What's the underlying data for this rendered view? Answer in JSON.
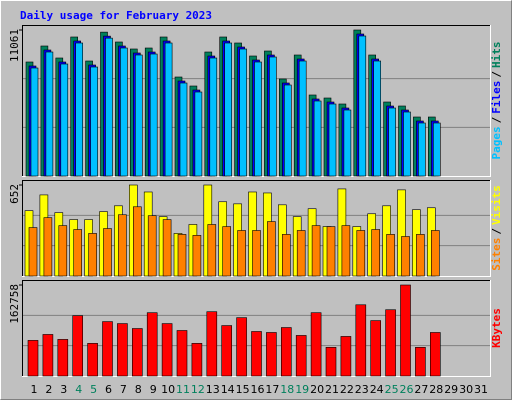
{
  "chart_data": [
    {
      "type": "bar",
      "title": "Daily usage for February 2023",
      "ylim": [
        0,
        11061
      ],
      "yticks": [
        11061
      ],
      "legend_separator": "/",
      "series": [
        {
          "name": "Hits",
          "color": "#00805c",
          "values": [
            8637,
            9849,
            8940,
            10531,
            8712,
            10900,
            10152,
            9622,
            9697,
            10531,
            7500,
            6818,
            9394,
            10531,
            10076,
            9091,
            9470,
            7349,
            9167,
            6137,
            5909,
            5455,
            11061,
            9167,
            5606,
            5303,
            4470,
            4470,
            null,
            null,
            null
          ]
        },
        {
          "name": "Files",
          "color": "#0000ff",
          "values": [
            8334,
            9546,
            8637,
            10228,
            8409,
            10597,
            9849,
            9319,
            9394,
            10228,
            7197,
            6515,
            9091,
            10228,
            9773,
            8788,
            9167,
            7046,
            8864,
            5834,
            5606,
            5152,
            10758,
            8864,
            5303,
            5000,
            4167,
            4167,
            null,
            null,
            null
          ]
        },
        {
          "name": "Pages",
          "color": "#00c0ff",
          "values": [
            8182,
            9394,
            8485,
            10076,
            8257,
            10445,
            9697,
            9167,
            9242,
            10076,
            7045,
            6363,
            8939,
            10076,
            9621,
            8636,
            9015,
            6894,
            8712,
            5682,
            5454,
            5000,
            10606,
            8712,
            5151,
            4848,
            4015,
            4015,
            null,
            null,
            null
          ]
        }
      ]
    },
    {
      "type": "bar",
      "ylim": [
        0,
        652
      ],
      "yticks": [
        652
      ],
      "legend_separator": "/",
      "series": [
        {
          "name": "Visits",
          "color": "#ffff00",
          "values": [
            468,
            581,
            454,
            404,
            404,
            461,
            503,
            652,
            602,
            425,
            305,
            369,
            652,
            532,
            517,
            602,
            595,
            510,
            425,
            482,
            354,
            624,
            354,
            446,
            503,
            617,
            475,
            489,
            null,
            null,
            null
          ]
        },
        {
          "name": "Sites",
          "color": "#ff8000",
          "values": [
            347,
            418,
            361,
            333,
            305,
            340,
            439,
            496,
            432,
            404,
            298,
            291,
            369,
            354,
            326,
            326,
            390,
            298,
            326,
            361,
            354,
            361,
            326,
            333,
            298,
            283,
            298,
            326,
            null,
            null,
            null
          ]
        }
      ]
    },
    {
      "type": "bar",
      "ylim": [
        0,
        162758
      ],
      "yticks": [
        162758
      ],
      "categories": [
        "1",
        "2",
        "3",
        "4",
        "5",
        "6",
        "7",
        "8",
        "9",
        "10",
        "11",
        "12",
        "13",
        "14",
        "15",
        "16",
        "17",
        "18",
        "19",
        "20",
        "21",
        "22",
        "23",
        "24",
        "25",
        "26",
        "27",
        "28",
        "29",
        "30",
        "31"
      ],
      "category_colors": [
        "#000000",
        "#000000",
        "#000000",
        "#00805c",
        "#00805c",
        "#000000",
        "#000000",
        "#000000",
        "#000000",
        "#000000",
        "#00805c",
        "#00805c",
        "#000000",
        "#000000",
        "#000000",
        "#000000",
        "#000000",
        "#00805c",
        "#00805c",
        "#000000",
        "#000000",
        "#000000",
        "#000000",
        "#000000",
        "#00805c",
        "#00805c",
        "#000000",
        "#000000",
        "#000000",
        "#000000",
        "#000000"
      ],
      "series": [
        {
          "name": "KBytes",
          "color": "#ff0000",
          "values": [
            63688,
            74302,
            65457,
            107915,
            58380,
            97301,
            93762,
            84917,
            113222,
            93762,
            81379,
            58380,
            114992,
            90224,
            104378,
            79610,
            77840,
            86686,
            72533,
            113222,
            51304,
            70764,
            127376,
            99070,
            118530,
            162758,
            51304,
            77840,
            null,
            null,
            null
          ]
        }
      ]
    }
  ]
}
